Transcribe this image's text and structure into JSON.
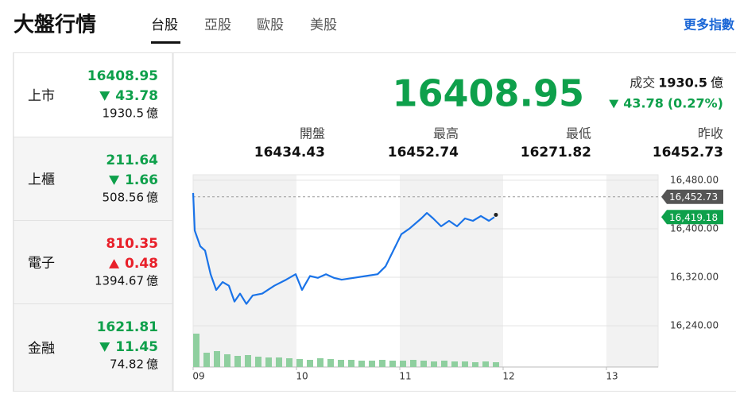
{
  "header": {
    "title": "大盤行情",
    "tabs": [
      "台股",
      "亞股",
      "歐股",
      "美股"
    ],
    "active_tab": 0,
    "more_link": "更多指數"
  },
  "indices": {
    "unit": "億",
    "items": [
      {
        "name": "上市",
        "price": 16408.95,
        "change": 43.78,
        "direction": "down",
        "volume": 1930.5
      },
      {
        "name": "上櫃",
        "price": 211.64,
        "change": 1.66,
        "direction": "down",
        "volume": 508.56
      },
      {
        "name": "電子",
        "price": 810.35,
        "change": 0.48,
        "direction": "up",
        "volume": 1394.67
      },
      {
        "name": "金融",
        "price": 1621.81,
        "change": 11.45,
        "direction": "down",
        "volume": 74.82
      }
    ]
  },
  "summary": {
    "price": 16408.95,
    "direction": "down",
    "volume_label": "成交",
    "volume": 1930.5,
    "unit": "億",
    "change": 43.78,
    "change_pct": "(0.27%)",
    "stats": [
      {
        "label": "開盤",
        "value": 16434.43
      },
      {
        "label": "最高",
        "value": 16452.74
      },
      {
        "label": "最低",
        "value": 16271.82
      },
      {
        "label": "昨收",
        "value": 16452.73
      }
    ]
  },
  "chart_data": {
    "type": "line",
    "color": "#1a73e8",
    "x": [
      9.0,
      9.015,
      9.069,
      9.115,
      9.169,
      9.223,
      9.285,
      9.346,
      9.4,
      9.454,
      9.515,
      9.577,
      9.669,
      9.785,
      9.9,
      9.992,
      10.054,
      10.131,
      10.208,
      10.285,
      10.362,
      10.438,
      10.554,
      10.669,
      10.785,
      10.862,
      10.938,
      11.015,
      11.092,
      11.208,
      11.262,
      11.323,
      11.4,
      11.477,
      11.554,
      11.631,
      11.708,
      11.785,
      11.862,
      11.915
    ],
    "values": [
      16459,
      16397,
      16371,
      16364,
      16325,
      16299,
      16312,
      16306,
      16280,
      16293,
      16276,
      16290,
      16293,
      16306,
      16316,
      16325,
      16299,
      16322,
      16319,
      16325,
      16319,
      16316,
      16319,
      16322,
      16325,
      16338,
      16364,
      16391,
      16400,
      16417,
      16426,
      16417,
      16404,
      16413,
      16404,
      16417,
      16413,
      16421,
      16413,
      16419
    ],
    "xlim": [
      9,
      13.5
    ],
    "xticks": [
      {
        "value": 9,
        "label": "09"
      },
      {
        "value": 10,
        "label": "10"
      },
      {
        "value": 11,
        "label": "11"
      },
      {
        "value": 12,
        "label": "12"
      },
      {
        "value": 13,
        "label": "13"
      }
    ],
    "ylim": [
      16172,
      16489
    ],
    "yticks": [
      {
        "value": 16480,
        "label": "16,480.00"
      },
      {
        "value": 16400,
        "label": "16,400.00"
      },
      {
        "value": 16320,
        "label": "16,320.00"
      },
      {
        "value": 16240,
        "label": "16,240.00"
      }
    ],
    "grid": true,
    "reference_lines": [
      {
        "value": 16452.73,
        "label": "16,452.73",
        "color": "#555555"
      },
      {
        "value": 16419.18,
        "label": "16,419.18",
        "color": "#0ea04b"
      }
    ],
    "volume": {
      "color": "#8fcf9f",
      "ylim": [
        0,
        100
      ],
      "x": [
        9.0,
        9.1,
        9.2,
        9.3,
        9.4,
        9.5,
        9.6,
        9.7,
        9.8,
        9.9,
        10.0,
        10.1,
        10.2,
        10.3,
        10.4,
        10.5,
        10.6,
        10.7,
        10.8,
        10.9,
        11.0,
        11.1,
        11.2,
        11.3,
        11.4,
        11.5,
        11.6,
        11.7,
        11.8,
        11.9
      ],
      "values": [
        42,
        18,
        20,
        16,
        14,
        15,
        13,
        12,
        12,
        11,
        10,
        9,
        11,
        10,
        9,
        9,
        8,
        8,
        9,
        8,
        8,
        9,
        8,
        7,
        8,
        7,
        7,
        6,
        7,
        6
      ]
    }
  }
}
